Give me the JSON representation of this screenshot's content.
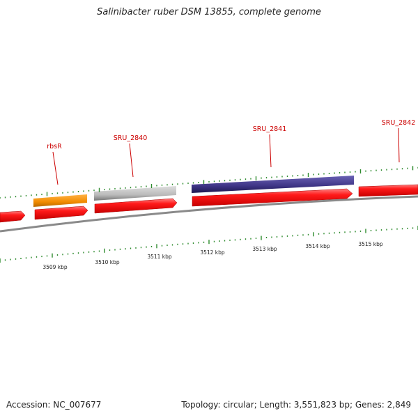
{
  "title": "Salinibacter ruber DSM 13855, complete genome",
  "footer": {
    "accession": "Accession: NC_007677",
    "summary": "Topology: circular; Length: 3,551,823 bp; Genes: 2,849"
  },
  "gene_labels": [
    {
      "text": "rbsR",
      "color": "#cc0000"
    },
    {
      "text": "SRU_2840",
      "color": "#cc0000"
    },
    {
      "text": "SRU_2841",
      "color": "#cc0000"
    },
    {
      "text": "SRU_2842",
      "color": "#cc0000"
    }
  ],
  "scale_labels": [
    "3509 kbp",
    "3510 kbp",
    "3511 kbp",
    "3512 kbp",
    "3513 kbp",
    "3514 kbp",
    "3515 kbp"
  ],
  "colors": {
    "cds": "#ee0000",
    "rbsR": "#f28c00",
    "SRU_2840": "#b9b9b9",
    "SRU_2841": "#3d3485",
    "backbone": "#888888",
    "tick": "#2e8b2e",
    "label_line": "#cc0000"
  }
}
